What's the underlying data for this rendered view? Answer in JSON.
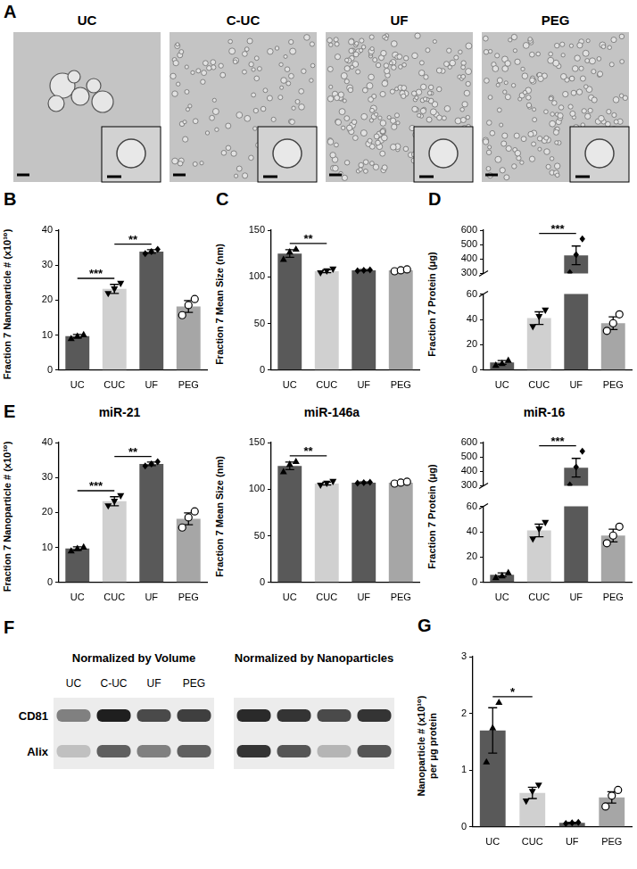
{
  "figure": {
    "panel_A": {
      "panel": "A",
      "images": [
        {
          "title": "UC"
        },
        {
          "title": "C-UC"
        },
        {
          "title": "UF"
        },
        {
          "title": "PEG"
        }
      ]
    },
    "panel_F": {
      "panel": "F",
      "row_labels": [
        "CD81",
        "Alix"
      ],
      "blots": [
        {
          "title": "Normalized by Volume",
          "lanes": [
            "UC",
            "C-UC",
            "UF",
            "PEG"
          ],
          "intensity": [
            [
              0.5,
              0.95,
              0.75,
              0.8
            ],
            [
              0.2,
              0.65,
              0.5,
              0.65
            ]
          ]
        },
        {
          "title": "Normalized by Nanoparticles",
          "intensity": [
            [
              0.9,
              0.85,
              0.75,
              0.85
            ],
            [
              0.85,
              0.7,
              0.25,
              0.7
            ]
          ]
        }
      ]
    }
  },
  "chart_data": [
    {
      "panel": "B",
      "type": "bar",
      "y_label": "Fraction 7 Nanoparticle # (x10¹⁰)",
      "categories": [
        "UC",
        "CUC",
        "UF",
        "PEG"
      ],
      "values": [
        9.7,
        23.2,
        33.9,
        18.2
      ],
      "errors": [
        0.5,
        1.3,
        0.5,
        1.7
      ],
      "points": [
        [
          9.1,
          9.8,
          10.2
        ],
        [
          21.8,
          23.1,
          24.7
        ],
        [
          33.3,
          33.9,
          34.5
        ],
        [
          15.7,
          18.6,
          20.3
        ]
      ],
      "markers": [
        "triangle",
        "triangle_down",
        "diamond",
        "circle_open"
      ],
      "colors": [
        "#595959",
        "#d0d0d0",
        "#595959",
        "#a6a6a6"
      ],
      "ylim": [
        0,
        40
      ],
      "yticks": [
        0,
        10,
        20,
        30,
        40
      ],
      "annotations": [
        {
          "text": "***",
          "from": "UC",
          "to": "CUC"
        },
        {
          "text": "**",
          "from": "CUC",
          "to": "UF"
        }
      ]
    },
    {
      "panel": "C",
      "type": "bar",
      "y_label": "Fraction 7 Mean Size (nm)",
      "categories": [
        "UC",
        "CUC",
        "UF",
        "PEG"
      ],
      "values": [
        125,
        106,
        107,
        107
      ],
      "errors": [
        4,
        1.5,
        0.7,
        0.8
      ],
      "points": [
        [
          119,
          127,
          130
        ],
        [
          104,
          106,
          108
        ],
        [
          106.5,
          107,
          107.5
        ],
        [
          106,
          107,
          108
        ]
      ],
      "markers": [
        "triangle",
        "triangle_down",
        "diamond",
        "circle_open"
      ],
      "colors": [
        "#595959",
        "#d0d0d0",
        "#595959",
        "#a6a6a6"
      ],
      "ylim": [
        0,
        150
      ],
      "yticks": [
        0,
        50,
        100,
        150
      ],
      "annotations": [
        {
          "text": "**",
          "from": "UC",
          "to": "CUC"
        }
      ]
    },
    {
      "panel": "D",
      "type": "bar",
      "y_label": "Fraction 7 Protein (μg)",
      "categories": [
        "UC",
        "CUC",
        "UF",
        "PEG"
      ],
      "values": [
        6,
        41,
        425,
        37
      ],
      "errors": [
        1.5,
        5,
        65,
        5
      ],
      "points": [
        [
          4,
          5.5,
          8
        ],
        [
          34,
          42,
          47
        ],
        [
          305,
          430,
          540
        ],
        [
          31,
          37,
          44
        ]
      ],
      "markers": [
        "triangle",
        "triangle_down",
        "diamond",
        "circle_open"
      ],
      "colors": [
        "#595959",
        "#d0d0d0",
        "#595959",
        "#a6a6a6"
      ],
      "ylim": [
        0,
        600
      ],
      "yticks": [
        0,
        20,
        40,
        60,
        300,
        400,
        500,
        600
      ],
      "y_break": [
        60,
        300
      ],
      "annotations": [
        {
          "text": "***",
          "from": "CUC",
          "to": "UF"
        }
      ]
    },
    {
      "panel": "E",
      "title": "miR-21",
      "type": "bar",
      "y_label": "Fraction 7 Nanoparticle # (x10¹⁰)",
      "categories": [
        "UC",
        "CUC",
        "UF",
        "PEG"
      ],
      "values": [
        9.7,
        23.2,
        33.9,
        18.2
      ],
      "errors": [
        0.5,
        1.3,
        0.5,
        1.7
      ],
      "points": [
        [
          9.1,
          9.8,
          10.2
        ],
        [
          21.8,
          23.1,
          24.7
        ],
        [
          33.3,
          33.9,
          34.5
        ],
        [
          15.7,
          18.6,
          20.3
        ]
      ],
      "markers": [
        "triangle",
        "triangle_down",
        "diamond",
        "circle_open"
      ],
      "colors": [
        "#595959",
        "#d0d0d0",
        "#595959",
        "#a6a6a6"
      ],
      "ylim": [
        0,
        40
      ],
      "yticks": [
        0,
        10,
        20,
        30,
        40
      ],
      "annotations": [
        {
          "text": "***",
          "from": "UC",
          "to": "CUC"
        },
        {
          "text": "**",
          "from": "CUC",
          "to": "UF"
        }
      ]
    },
    {
      "title": "miR-146a",
      "type": "bar",
      "y_label": "Fraction 7 Mean Size (nm)",
      "categories": [
        "UC",
        "CUC",
        "UF",
        "PEG"
      ],
      "values": [
        125,
        106,
        107,
        107
      ],
      "errors": [
        4,
        1.5,
        0.7,
        0.8
      ],
      "points": [
        [
          119,
          127,
          130
        ],
        [
          104,
          106,
          108
        ],
        [
          106.5,
          107,
          107.5
        ],
        [
          106,
          107,
          108
        ]
      ],
      "markers": [
        "triangle",
        "triangle_down",
        "diamond",
        "circle_open"
      ],
      "colors": [
        "#595959",
        "#d0d0d0",
        "#595959",
        "#a6a6a6"
      ],
      "ylim": [
        0,
        150
      ],
      "yticks": [
        0,
        50,
        100,
        150
      ],
      "annotations": [
        {
          "text": "**",
          "from": "UC",
          "to": "CUC"
        }
      ]
    },
    {
      "title": "miR-16",
      "type": "bar",
      "y_label": "Fraction 7 Protein (μg)",
      "categories": [
        "UC",
        "CUC",
        "UF",
        "PEG"
      ],
      "values": [
        6,
        41,
        425,
        37
      ],
      "errors": [
        1.5,
        5,
        65,
        5
      ],
      "points": [
        [
          4,
          5.5,
          8
        ],
        [
          34,
          42,
          47
        ],
        [
          305,
          430,
          540
        ],
        [
          31,
          37,
          44
        ]
      ],
      "markers": [
        "triangle",
        "triangle_down",
        "diamond",
        "circle_open"
      ],
      "colors": [
        "#595959",
        "#d0d0d0",
        "#595959",
        "#a6a6a6"
      ],
      "ylim": [
        0,
        600
      ],
      "yticks": [
        0,
        20,
        40,
        60,
        300,
        400,
        500,
        600
      ],
      "y_break": [
        60,
        300
      ],
      "annotations": [
        {
          "text": "***",
          "from": "CUC",
          "to": "UF"
        }
      ]
    },
    {
      "panel": "G",
      "type": "bar",
      "y_label": [
        "Nanoparticle # (x10¹⁰)",
        "per μg protein"
      ],
      "categories": [
        "UC",
        "CUC",
        "UF",
        "PEG"
      ],
      "values": [
        1.7,
        0.6,
        0.07,
        0.52
      ],
      "errors": [
        0.4,
        0.1,
        0.01,
        0.1
      ],
      "points": [
        [
          1.15,
          1.75,
          2.2
        ],
        [
          0.45,
          0.62,
          0.73
        ],
        [
          0.06,
          0.07,
          0.08
        ],
        [
          0.36,
          0.55,
          0.65
        ]
      ],
      "markers": [
        "triangle",
        "triangle_down",
        "diamond",
        "circle_open"
      ],
      "colors": [
        "#595959",
        "#d0d0d0",
        "#595959",
        "#a6a6a6"
      ],
      "ylim": [
        0,
        3
      ],
      "yticks": [
        0,
        1,
        2,
        3
      ],
      "annotations": [
        {
          "text": "*",
          "from": "UC",
          "to": "CUC"
        }
      ]
    }
  ]
}
